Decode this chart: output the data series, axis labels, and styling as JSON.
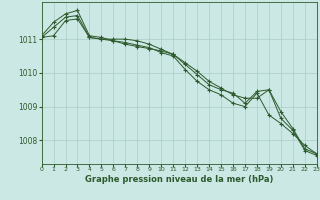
{
  "title": "Graphe pression niveau de la mer (hPa)",
  "bg_color": "#cce8e4",
  "grid_color": "#aaccc8",
  "line_color": "#2d5a2d",
  "xlim": [
    0,
    23
  ],
  "ylim": [
    1007.3,
    1012.1
  ],
  "yticks": [
    1008,
    1009,
    1010,
    1011
  ],
  "xticks": [
    0,
    1,
    2,
    3,
    4,
    5,
    6,
    7,
    8,
    9,
    10,
    11,
    12,
    13,
    14,
    15,
    16,
    17,
    18,
    19,
    20,
    21,
    22,
    23
  ],
  "series": [
    [
      1011.05,
      1011.35,
      1011.65,
      1011.7,
      1011.05,
      1011.0,
      1011.0,
      1011.0,
      1010.95,
      1010.85,
      1010.7,
      1010.55,
      1010.25,
      1009.95,
      1009.65,
      1009.5,
      1009.4,
      1009.1,
      1009.45,
      1009.5,
      1008.85,
      1008.35,
      1007.75,
      1007.6
    ],
    [
      1011.1,
      1011.5,
      1011.75,
      1011.85,
      1011.1,
      1011.05,
      1010.95,
      1010.85,
      1010.78,
      1010.72,
      1010.65,
      1010.55,
      1010.3,
      1010.05,
      1009.75,
      1009.55,
      1009.35,
      1009.25,
      1009.25,
      1009.5,
      1008.65,
      1008.3,
      1007.7,
      1007.55
    ],
    [
      1011.05,
      1011.1,
      1011.55,
      1011.6,
      1011.05,
      1011.0,
      1010.95,
      1010.9,
      1010.82,
      1010.75,
      1010.6,
      1010.5,
      1010.1,
      1009.75,
      1009.5,
      1009.35,
      1009.1,
      1009.0,
      1009.4,
      1008.75,
      1008.5,
      1008.2,
      1007.85,
      1007.6
    ]
  ]
}
